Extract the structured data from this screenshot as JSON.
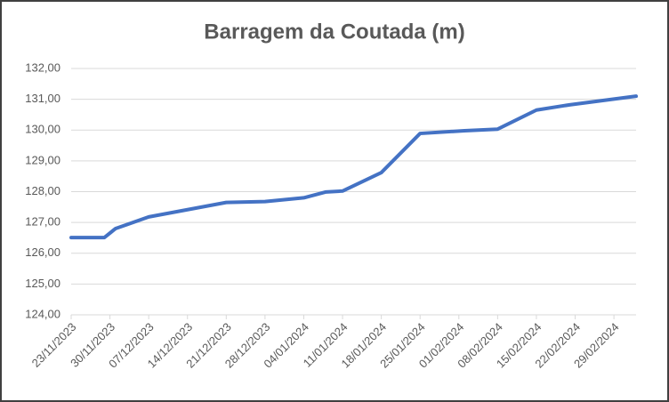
{
  "chart_data": {
    "type": "line",
    "title": "Barragem da Coutada (m)",
    "x": [
      "23/11/2023",
      "29/11/2023",
      "01/12/2023",
      "07/12/2023",
      "21/12/2023",
      "28/12/2023",
      "04/01/2024",
      "08/01/2024",
      "11/01/2024",
      "18/01/2024",
      "25/01/2024",
      "02/02/2024",
      "08/02/2024",
      "15/02/2024",
      "21/02/2024",
      "04/03/2024"
    ],
    "series": [
      {
        "name": "Barragem da Coutada",
        "color": "#4472c4",
        "values": [
          126.51,
          126.51,
          126.8,
          127.18,
          127.65,
          127.68,
          127.8,
          127.99,
          128.02,
          128.62,
          129.89,
          129.98,
          130.03,
          130.65,
          130.82,
          131.1
        ]
      }
    ],
    "xlim": [
      "23/11/2023",
      "04/03/2024"
    ],
    "xticks": [
      "23/11/2023",
      "30/11/2023",
      "07/12/2023",
      "14/12/2023",
      "21/12/2023",
      "28/12/2023",
      "04/01/2024",
      "11/01/2024",
      "18/01/2024",
      "25/01/2024",
      "01/02/2024",
      "08/02/2024",
      "15/02/2024",
      "22/02/2024",
      "29/02/2024"
    ],
    "ylim": [
      124,
      132
    ],
    "yticks": [
      {
        "value": 124,
        "label": "124,00"
      },
      {
        "value": 125,
        "label": "125,00"
      },
      {
        "value": 126,
        "label": "126,00"
      },
      {
        "value": 127,
        "label": "127,00"
      },
      {
        "value": 128,
        "label": "128,00"
      },
      {
        "value": 129,
        "label": "129,00"
      },
      {
        "value": 130,
        "label": "130,00"
      },
      {
        "value": 131,
        "label": "131,00"
      },
      {
        "value": 132,
        "label": "132,00"
      }
    ],
    "grid": true
  }
}
